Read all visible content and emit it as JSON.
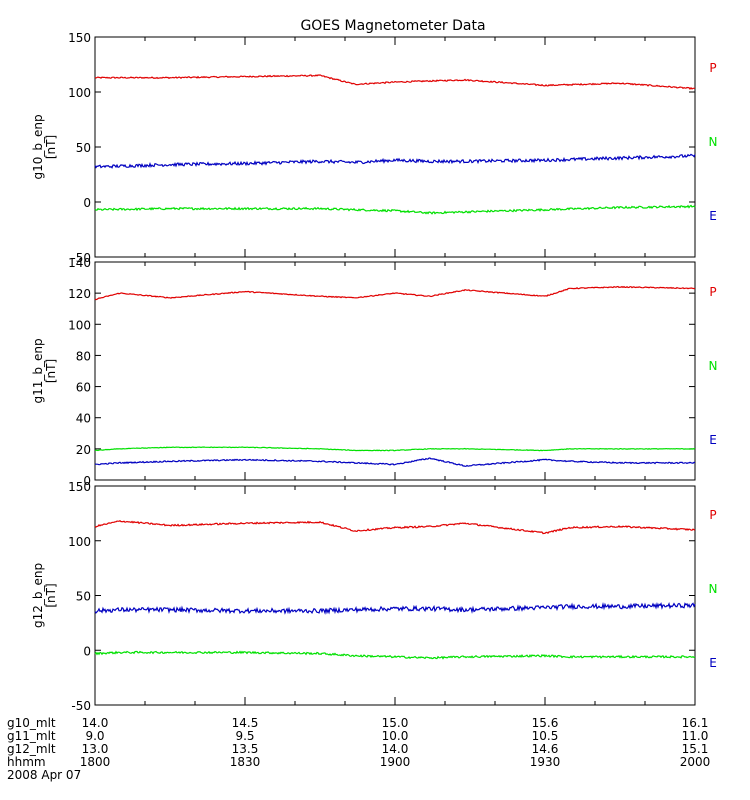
{
  "title": "GOES Magnetometer Data",
  "chart_data": [
    {
      "type": "line",
      "ylabel": "g10_b_enp",
      "unit": "[nT]",
      "ylim": [
        -50,
        150
      ],
      "yticks": [
        -50,
        0,
        50,
        100,
        150
      ],
      "x": [
        1800,
        1815,
        1830,
        1845,
        1852,
        1900,
        1907,
        1914,
        1930,
        1945,
        2000
      ],
      "series": [
        {
          "name": "P",
          "color": "#e00000",
          "values": [
            113,
            113,
            114,
            115,
            107,
            109,
            110,
            111,
            106,
            108,
            103
          ],
          "noise": 0.6
        },
        {
          "name": "N",
          "color": "#00e000",
          "values": [
            -7,
            -6,
            -6,
            -6,
            -7,
            -8,
            -10,
            -9,
            -7,
            -5,
            -4
          ],
          "noise": 0.9
        },
        {
          "name": "E",
          "color": "#0000c0",
          "values": [
            32,
            34,
            35,
            37,
            36,
            38,
            37,
            37,
            38,
            40,
            42
          ],
          "noise": 1.4
        }
      ]
    },
    {
      "type": "line",
      "ylabel": "g11_b_enp",
      "unit": "[nT]",
      "ylim": [
        0,
        140
      ],
      "yticks": [
        0,
        20,
        40,
        60,
        80,
        100,
        120,
        140
      ],
      "x": [
        1800,
        1805,
        1815,
        1830,
        1845,
        1852,
        1900,
        1907,
        1914,
        1930,
        1935,
        1945,
        2000
      ],
      "series": [
        {
          "name": "P",
          "color": "#e00000",
          "values": [
            116,
            120,
            117,
            121,
            118,
            117,
            120,
            118,
            122,
            118,
            123,
            124,
            123
          ],
          "noise": 0.3
        },
        {
          "name": "N",
          "color": "#00e000",
          "values": [
            19,
            20,
            21,
            21,
            20,
            19,
            19,
            20,
            20,
            19,
            20,
            20,
            20
          ],
          "noise": 0.2
        },
        {
          "name": "E",
          "color": "#0000c0",
          "values": [
            10,
            11,
            12,
            13,
            12,
            11,
            10,
            14,
            9,
            13,
            12,
            11,
            11
          ],
          "noise": 0.4
        }
      ]
    },
    {
      "type": "line",
      "ylabel": "g12_b_enp",
      "unit": "[nT]",
      "ylim": [
        -50,
        150
      ],
      "yticks": [
        -50,
        0,
        50,
        100,
        150
      ],
      "x": [
        1800,
        1805,
        1815,
        1830,
        1845,
        1852,
        1900,
        1907,
        1914,
        1930,
        1935,
        1945,
        2000
      ],
      "series": [
        {
          "name": "P",
          "color": "#e00000",
          "values": [
            113,
            118,
            114,
            116,
            117,
            109,
            112,
            113,
            116,
            107,
            112,
            113,
            110
          ],
          "noise": 0.7
        },
        {
          "name": "N",
          "color": "#00e000",
          "values": [
            -3,
            -2,
            -2,
            -2,
            -3,
            -5,
            -6,
            -7,
            -6,
            -5,
            -6,
            -6,
            -6
          ],
          "noise": 0.9
        },
        {
          "name": "E",
          "color": "#0000c0",
          "values": [
            36,
            37,
            37,
            36,
            36,
            37,
            38,
            38,
            37,
            39,
            40,
            40,
            41
          ],
          "noise": 2.0
        }
      ]
    }
  ],
  "right_labels": [
    [
      {
        "text": "P",
        "color": "#e00000"
      },
      {
        "text": "N",
        "color": "#00e000"
      },
      {
        "text": "E",
        "color": "#0000c0"
      }
    ],
    [
      {
        "text": "P",
        "color": "#e00000"
      },
      {
        "text": "N",
        "color": "#00e000"
      },
      {
        "text": "E",
        "color": "#0000c0"
      }
    ],
    [
      {
        "text": "P",
        "color": "#e00000"
      },
      {
        "text": "N",
        "color": "#00e000"
      },
      {
        "text": "E",
        "color": "#0000c0"
      }
    ]
  ],
  "x_axis": {
    "rows": [
      {
        "label": "g10_mlt",
        "values": [
          "14.0",
          "14.5",
          "15.0",
          "15.6",
          "16.1"
        ]
      },
      {
        "label": "g11_mlt",
        "values": [
          "9.0",
          "9.5",
          "10.0",
          "10.5",
          "11.0"
        ]
      },
      {
        "label": "g12_mlt",
        "values": [
          "13.0",
          "13.5",
          "14.0",
          "14.6",
          "15.1"
        ]
      },
      {
        "label": "hhmm",
        "values": [
          "1800",
          "1830",
          "1900",
          "1930",
          "2000"
        ]
      }
    ],
    "date": "2008 Apr 07"
  }
}
